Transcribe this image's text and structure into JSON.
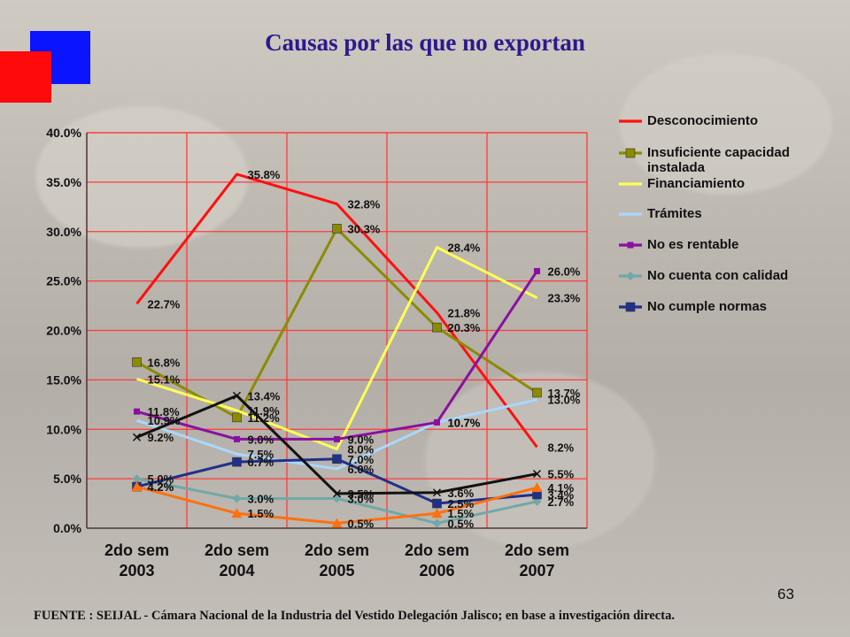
{
  "slide": {
    "title": "Causas por las que no exportan",
    "page_number": "63",
    "footnote": "FUENTE :  SEIJAL - Cámara Nacional de la Industria del Vestido Delegación Jalisco;  en base a investigación directa."
  },
  "chart_data": {
    "type": "line",
    "categories": [
      "2do sem 2003",
      "2do sem 2004",
      "2do sem 2005",
      "2do sem 2006",
      "2do sem 2007"
    ],
    "category_lines": [
      [
        "2do sem",
        "2003"
      ],
      [
        "2do sem",
        "2004"
      ],
      [
        "2do sem",
        "2005"
      ],
      [
        "2do sem",
        "2006"
      ],
      [
        "2do sem",
        "2007"
      ]
    ],
    "ylim": [
      0,
      40
    ],
    "yticks": [
      0,
      5,
      10,
      15,
      20,
      25,
      30,
      35,
      40
    ],
    "ytick_labels": [
      "0.0%",
      "5.0%",
      "10.0%",
      "15.0%",
      "20.0%",
      "25.0%",
      "30.0%",
      "35.0%",
      "40.0%"
    ],
    "grid": true,
    "legend": "right",
    "series": [
      {
        "name": "Desconocimiento",
        "color": "#ff1010",
        "marker": "none",
        "values": [
          22.7,
          35.8,
          32.8,
          21.8,
          8.2
        ],
        "labels": [
          "22.7%",
          "35.8%",
          "32.8%",
          "21.8%",
          "8.2%"
        ]
      },
      {
        "name": "Insuficiente capacidad instalada",
        "color": "#8b8b00",
        "marker": "square",
        "values": [
          16.8,
          11.2,
          30.3,
          20.3,
          13.7
        ],
        "labels": [
          "16.8%",
          "11.2%",
          "30.3%",
          "20.3%",
          "13.7%"
        ]
      },
      {
        "name": "Financiamiento",
        "color": "#ffff55",
        "marker": "none",
        "values": [
          15.1,
          11.9,
          8.0,
          28.4,
          23.3
        ],
        "labels": [
          "15.1%",
          "11.9%",
          "8.0%",
          "28.4%",
          "23.3%"
        ]
      },
      {
        "name": "Trámites",
        "color": "#a8d8ff",
        "marker": "none",
        "values": [
          10.9,
          7.5,
          6.0,
          10.7,
          13.0
        ],
        "labels": [
          "10.9%",
          "7.5%",
          "6.0%",
          "10.7%",
          "13.0%"
        ]
      },
      {
        "name": "No es rentable",
        "color": "#8a10a0",
        "marker": "square-small",
        "values": [
          11.8,
          9.0,
          9.0,
          10.7,
          26.0
        ],
        "labels": [
          "11.8%",
          "9.0%",
          "9.0%",
          "10.7%",
          "26.0%"
        ]
      },
      {
        "name": "No cuenta con calidad",
        "color": "#70a8a8",
        "marker": "diamond",
        "values": [
          5.0,
          3.0,
          3.0,
          0.5,
          2.7
        ],
        "labels": [
          "5.0%",
          "3.0%",
          "3.0%",
          "0.5%",
          "2.7%"
        ]
      },
      {
        "name": "No cumple normas",
        "color": "#20308a",
        "marker": "square",
        "values": [
          4.2,
          6.7,
          7.0,
          2.5,
          3.4
        ],
        "labels": [
          "4.2%",
          "6.7%",
          "7.0%",
          "2.5%",
          "3.4%"
        ]
      },
      {
        "name": "",
        "color": "#111111",
        "marker": "x",
        "values": [
          9.2,
          13.4,
          3.5,
          3.6,
          5.5
        ],
        "labels": [
          "9.2%",
          "13.4%",
          "3.5%",
          "3.6%",
          "5.5%"
        ]
      },
      {
        "name": "",
        "color": "#ff7010",
        "marker": "triangle",
        "values": [
          4.2,
          1.5,
          0.5,
          1.5,
          4.1
        ],
        "labels": [
          "4.2%",
          "1.5%",
          "0.5%",
          "1.5%",
          "4.1%"
        ]
      }
    ]
  }
}
